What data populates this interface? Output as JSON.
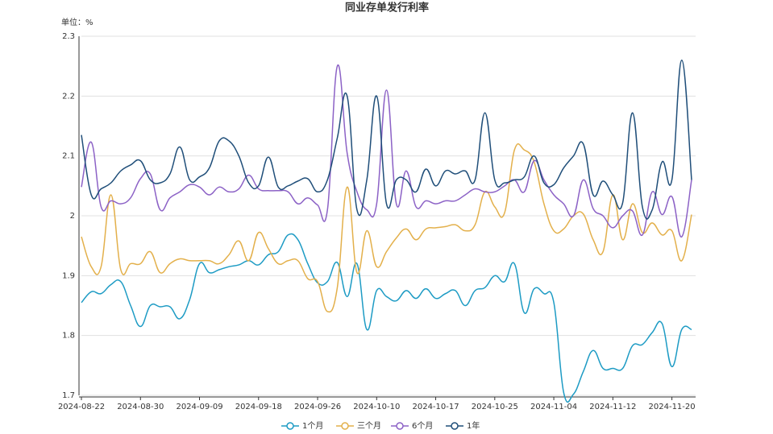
{
  "chart_data": {
    "type": "line",
    "title": "同业存单发行利率",
    "y_label": "单位：%",
    "categories": [
      "2024-08-22",
      null,
      null,
      null,
      null,
      null,
      "2024-08-30",
      null,
      null,
      null,
      null,
      null,
      "2024-09-09",
      null,
      null,
      null,
      null,
      null,
      "2024-09-18",
      null,
      null,
      null,
      null,
      null,
      "2024-09-26",
      null,
      null,
      null,
      null,
      null,
      "2024-10-10",
      null,
      null,
      null,
      null,
      null,
      "2024-10-17",
      null,
      null,
      null,
      null,
      null,
      "2024-10-25",
      null,
      null,
      null,
      null,
      null,
      "2024-11-04",
      null,
      null,
      null,
      null,
      null,
      "2024-11-12",
      null,
      null,
      null,
      null,
      null,
      "2024-11-20",
      null,
      null
    ],
    "series": [
      {
        "name": "1个月",
        "color": "#1d9bc4",
        "values": [
          1.855,
          1.873,
          1.87,
          1.885,
          1.89,
          1.85,
          1.815,
          1.85,
          1.848,
          1.848,
          1.828,
          1.86,
          1.92,
          1.905,
          1.91,
          1.915,
          1.918,
          1.925,
          1.918,
          1.935,
          1.94,
          1.968,
          1.96,
          1.92,
          1.888,
          1.89,
          1.922,
          1.865,
          1.92,
          1.81,
          1.875,
          1.865,
          1.858,
          1.875,
          1.862,
          1.878,
          1.862,
          1.87,
          1.875,
          1.85,
          1.875,
          1.88,
          1.9,
          1.89,
          1.92,
          1.838,
          1.878,
          1.87,
          1.855,
          1.705,
          1.702,
          1.74,
          1.775,
          1.745,
          1.745,
          1.745,
          1.783,
          1.785,
          1.805,
          1.82,
          1.748,
          1.81,
          1.81
        ]
      },
      {
        "name": "三个月",
        "color": "#e3b04b",
        "values": [
          1.965,
          1.915,
          1.915,
          2.035,
          1.91,
          1.92,
          1.92,
          1.94,
          1.905,
          1.92,
          1.928,
          1.925,
          1.925,
          1.925,
          1.92,
          1.935,
          1.958,
          1.925,
          1.972,
          1.945,
          1.92,
          1.925,
          1.925,
          1.895,
          1.89,
          1.84,
          1.88,
          2.048,
          1.905,
          1.975,
          1.915,
          1.94,
          1.963,
          1.978,
          1.96,
          1.978,
          1.98,
          1.982,
          1.985,
          1.975,
          1.985,
          2.04,
          2.015,
          2.005,
          2.11,
          2.11,
          2.09,
          2.02,
          1.975,
          1.978,
          2.0,
          2.003,
          1.96,
          1.94,
          2.035,
          1.96,
          2.02,
          1.972,
          1.988,
          1.968,
          1.975,
          1.925,
          2.002
        ]
      },
      {
        "name": "6个月",
        "color": "#8c62c6",
        "values": [
          2.048,
          2.123,
          2.015,
          2.025,
          2.02,
          2.03,
          2.062,
          2.07,
          2.01,
          2.03,
          2.04,
          2.052,
          2.048,
          2.035,
          2.048,
          2.04,
          2.045,
          2.068,
          2.045,
          2.042,
          2.042,
          2.04,
          2.02,
          2.03,
          2.018,
          2.01,
          2.25,
          2.105,
          2.04,
          2.01,
          2.02,
          2.21,
          2.02,
          2.075,
          2.015,
          2.025,
          2.02,
          2.025,
          2.025,
          2.035,
          2.045,
          2.04,
          2.04,
          2.05,
          2.06,
          2.04,
          2.092,
          2.06,
          2.035,
          2.02,
          2.0,
          2.06,
          2.012,
          2.0,
          1.98,
          2.0,
          2.008,
          1.968,
          2.04,
          2.002,
          2.032,
          1.965,
          2.06
        ]
      },
      {
        "name": "1年",
        "color": "#1f4e79",
        "values": [
          2.135,
          2.035,
          2.045,
          2.055,
          2.075,
          2.085,
          2.092,
          2.06,
          2.055,
          2.07,
          2.115,
          2.06,
          2.065,
          2.08,
          2.125,
          2.125,
          2.1,
          2.055,
          2.05,
          2.098,
          2.048,
          2.05,
          2.058,
          2.062,
          2.04,
          2.06,
          2.13,
          2.2,
          2.01,
          2.06,
          2.2,
          2.02,
          2.06,
          2.06,
          2.04,
          2.078,
          2.05,
          2.075,
          2.07,
          2.075,
          2.06,
          2.172,
          2.06,
          2.055,
          2.06,
          2.065,
          2.1,
          2.055,
          2.052,
          2.08,
          2.1,
          2.12,
          2.035,
          2.058,
          2.035,
          2.022,
          2.172,
          2.015,
          2.01,
          2.09,
          2.06,
          2.26,
          2.06
        ]
      }
    ],
    "ylim": [
      1.7,
      2.3
    ],
    "yticks": [
      1.7,
      1.8,
      1.9,
      2,
      2.1,
      2.2,
      2.3
    ],
    "grid": true,
    "legend": "bottom"
  }
}
